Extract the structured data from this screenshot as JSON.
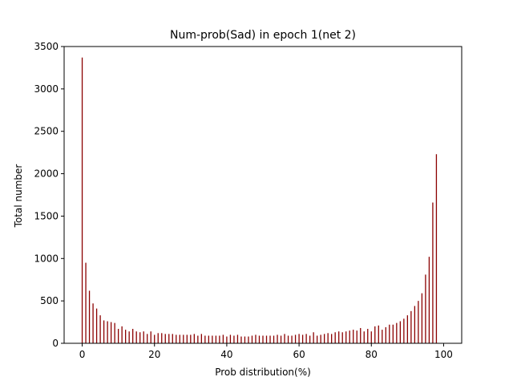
{
  "chart_data": {
    "type": "bar",
    "title": "Num-prob(Sad) in epoch 1(net 2)",
    "xlabel": "Prob distribution(%)",
    "ylabel": "Total number",
    "xlim": [
      -5,
      105
    ],
    "ylim": [
      0,
      3500
    ],
    "xticks": [
      0,
      20,
      40,
      60,
      80,
      100
    ],
    "yticks": [
      0,
      500,
      1000,
      1500,
      2000,
      2500,
      3000,
      3500
    ],
    "bar_color": "#8b0000",
    "grid": false,
    "x": [
      0,
      1,
      2,
      3,
      4,
      5,
      6,
      7,
      8,
      9,
      10,
      11,
      12,
      13,
      14,
      15,
      16,
      17,
      18,
      19,
      20,
      21,
      22,
      23,
      24,
      25,
      26,
      27,
      28,
      29,
      30,
      31,
      32,
      33,
      34,
      35,
      36,
      37,
      38,
      39,
      40,
      41,
      42,
      43,
      44,
      45,
      46,
      47,
      48,
      49,
      50,
      51,
      52,
      53,
      54,
      55,
      56,
      57,
      58,
      59,
      60,
      61,
      62,
      63,
      64,
      65,
      66,
      67,
      68,
      69,
      70,
      71,
      72,
      73,
      74,
      75,
      76,
      77,
      78,
      79,
      80,
      81,
      82,
      83,
      84,
      85,
      86,
      87,
      88,
      89,
      90,
      91,
      92,
      93,
      94,
      95,
      96,
      97,
      98,
      99
    ],
    "values": [
      3370,
      950,
      620,
      470,
      410,
      330,
      270,
      260,
      250,
      240,
      170,
      200,
      160,
      140,
      170,
      140,
      130,
      140,
      110,
      140,
      100,
      120,
      120,
      110,
      110,
      110,
      100,
      100,
      100,
      100,
      100,
      110,
      90,
      110,
      90,
      90,
      90,
      90,
      90,
      100,
      80,
      100,
      90,
      100,
      80,
      80,
      80,
      90,
      100,
      90,
      90,
      90,
      90,
      90,
      100,
      90,
      110,
      90,
      90,
      100,
      110,
      100,
      110,
      90,
      130,
      90,
      100,
      110,
      120,
      110,
      130,
      140,
      130,
      140,
      150,
      160,
      150,
      180,
      140,
      170,
      140,
      200,
      210,
      160,
      190,
      220,
      220,
      240,
      260,
      290,
      330,
      380,
      440,
      500,
      590,
      810,
      1020,
      1660,
      2230,
      0
    ]
  }
}
